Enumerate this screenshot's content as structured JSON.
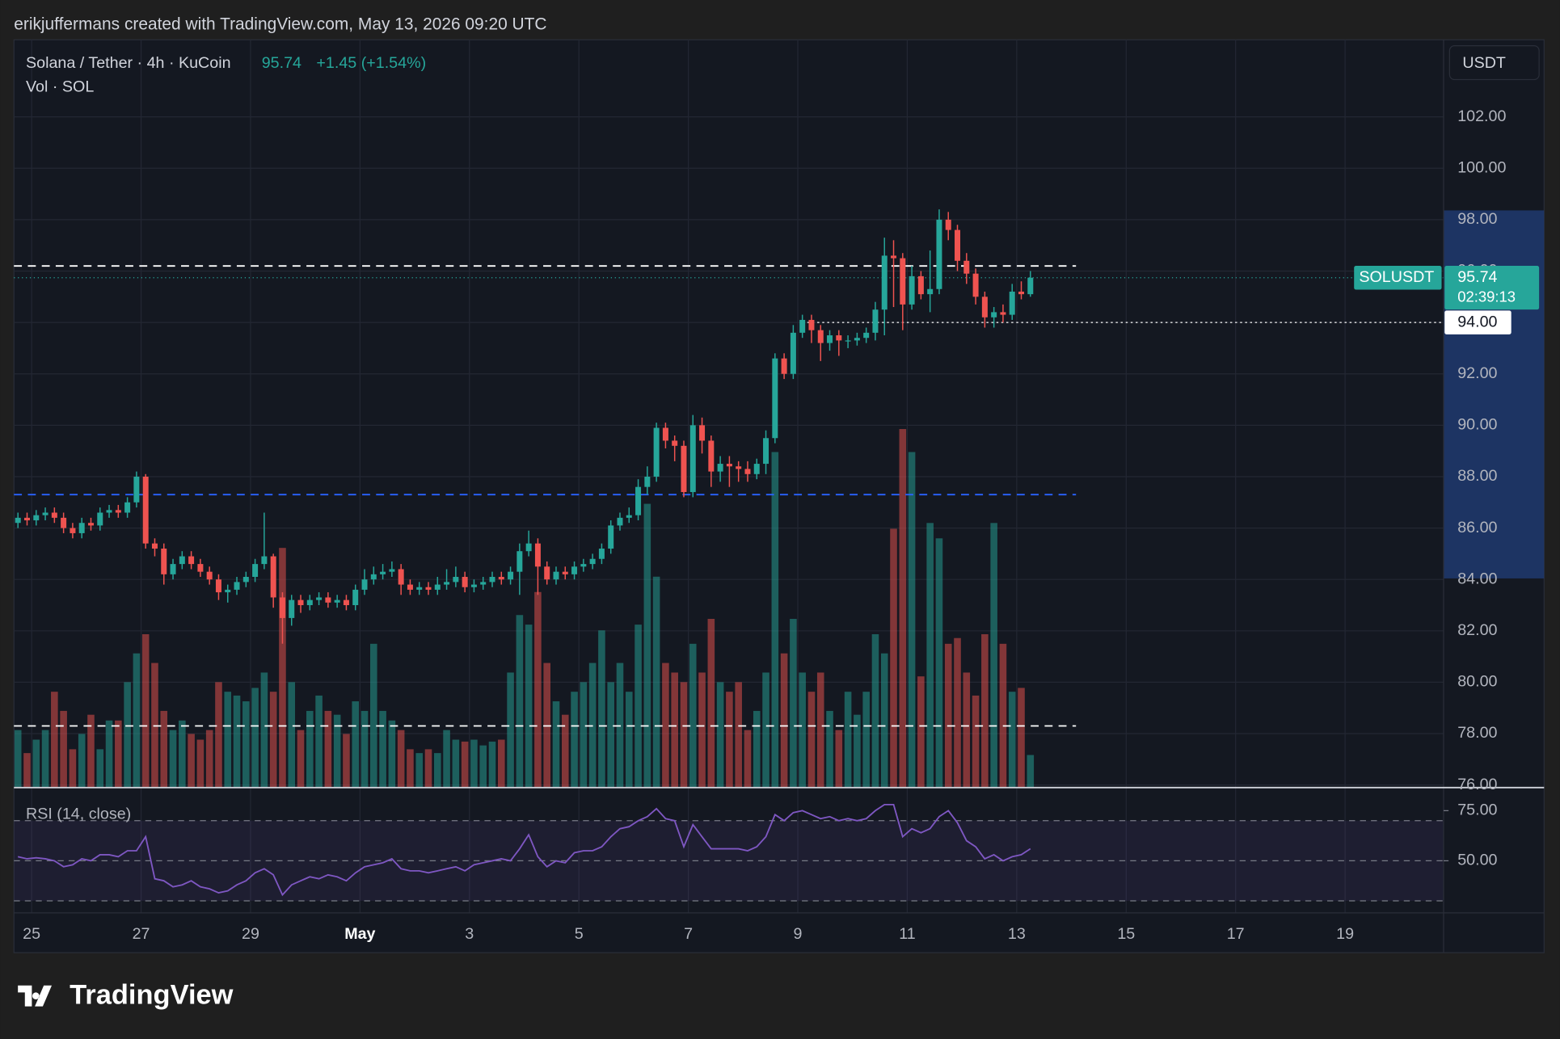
{
  "header": {
    "text": "erikjuffermans created with TradingView.com, May 13, 2026 09:20 UTC"
  },
  "chart_data": {
    "type": "candlestick",
    "title": "Solana / Tether · 4h · KuCoin",
    "last_price": 95.74,
    "change": "+1.45 (+1.54%)",
    "symbol_label": "SOLUSDT",
    "countdown": "02:39:13",
    "currency": "USDT",
    "up_color": "#26a69a",
    "down_color": "#ef5350",
    "open": [
      86.2,
      86.4,
      86.3,
      86.5,
      86.6,
      86.4,
      86.0,
      85.8,
      86.2,
      86.1,
      86.6,
      86.7,
      86.6,
      87.0,
      88.0,
      85.4,
      85.2,
      84.2,
      84.6,
      84.9,
      84.6,
      84.3,
      84.0,
      83.5,
      83.6,
      83.9,
      84.1,
      84.6,
      84.9,
      83.3,
      82.5,
      83.2,
      83.0,
      83.2,
      83.3,
      83.1,
      83.2,
      83.0,
      83.6,
      84.0,
      84.2,
      84.3,
      84.4,
      83.8,
      83.6,
      83.7,
      83.6,
      83.8,
      83.9,
      84.1,
      83.7,
      83.8,
      83.9,
      84.1,
      84.0,
      84.3,
      85.1,
      85.4,
      84.5,
      84.0,
      84.3,
      84.2,
      84.5,
      84.6,
      84.8,
      85.2,
      86.1,
      86.4,
      86.5,
      87.6,
      88.0,
      89.9,
      89.4,
      89.2,
      87.4,
      90.0,
      89.4,
      88.2,
      88.5,
      88.4,
      88.3,
      88.1,
      88.5,
      89.5,
      92.6,
      92.0,
      93.6,
      94.1,
      93.7,
      93.2,
      93.5,
      93.3,
      93.3,
      93.4,
      93.6,
      94.5,
      96.6,
      96.5,
      94.7,
      95.8,
      95.1,
      95.3,
      98.0,
      97.6,
      96.4,
      95.9,
      95.0,
      94.2,
      94.4,
      94.3,
      95.2,
      95.1
    ],
    "high": [
      86.6,
      86.6,
      86.7,
      86.8,
      86.8,
      86.6,
      86.2,
      86.4,
      86.4,
      86.8,
      86.9,
      86.9,
      87.2,
      88.2,
      88.1,
      85.6,
      85.4,
      84.8,
      85.1,
      85.1,
      84.8,
      84.5,
      84.2,
      83.8,
      84.1,
      84.3,
      84.8,
      86.6,
      85.0,
      83.5,
      83.4,
      83.4,
      83.4,
      83.5,
      83.5,
      83.4,
      83.4,
      83.8,
      84.4,
      84.5,
      84.6,
      84.7,
      84.6,
      84.0,
      83.9,
      83.9,
      84.1,
      84.4,
      84.5,
      84.3,
      84.0,
      84.1,
      84.3,
      84.3,
      84.5,
      85.4,
      85.9,
      85.6,
      84.7,
      84.5,
      84.5,
      84.7,
      84.8,
      85.0,
      85.4,
      86.3,
      86.6,
      86.8,
      87.9,
      88.4,
      90.1,
      90.1,
      89.6,
      89.4,
      90.4,
      90.3,
      89.6,
      88.8,
      88.8,
      88.6,
      88.6,
      88.7,
      89.8,
      92.8,
      92.8,
      93.9,
      94.3,
      94.3,
      93.9,
      93.7,
      93.7,
      93.5,
      93.6,
      93.8,
      94.8,
      97.3,
      97.2,
      96.7,
      96.2,
      96.0,
      96.8,
      98.4,
      98.3,
      97.8,
      96.7,
      96.1,
      95.2,
      94.6,
      94.7,
      95.5,
      95.6,
      96.0
    ],
    "low": [
      86.0,
      86.1,
      86.1,
      86.3,
      86.2,
      85.8,
      85.6,
      85.6,
      85.9,
      85.9,
      86.4,
      86.4,
      86.4,
      86.8,
      85.2,
      84.9,
      83.8,
      84.0,
      84.4,
      84.4,
      84.1,
      83.8,
      83.2,
      83.1,
      83.4,
      83.7,
      83.9,
      84.4,
      82.9,
      81.5,
      82.2,
      82.7,
      82.8,
      83.0,
      82.9,
      82.9,
      82.8,
      82.8,
      83.4,
      83.8,
      84.0,
      84.1,
      83.4,
      83.4,
      83.4,
      83.4,
      83.4,
      83.6,
      83.7,
      83.5,
      83.5,
      83.6,
      83.7,
      83.8,
      83.8,
      83.4,
      84.9,
      83.4,
      83.8,
      83.8,
      84.0,
      84.0,
      84.3,
      84.4,
      84.6,
      85.0,
      85.9,
      86.2,
      86.3,
      87.3,
      87.8,
      89.1,
      88.6,
      87.2,
      87.2,
      88.9,
      87.6,
      87.8,
      87.6,
      87.8,
      87.8,
      87.9,
      88.1,
      89.3,
      91.8,
      91.8,
      93.4,
      93.2,
      92.5,
      92.9,
      92.7,
      93.0,
      93.1,
      93.2,
      93.3,
      93.5,
      94.6,
      93.7,
      94.5,
      94.9,
      94.4,
      95.1,
      97.2,
      96.0,
      95.5,
      94.7,
      93.8,
      93.8,
      94.0,
      94.1,
      94.9,
      95.0
    ],
    "close": [
      86.4,
      86.3,
      86.5,
      86.6,
      86.4,
      86.0,
      85.8,
      86.2,
      86.1,
      86.6,
      86.7,
      86.6,
      87.0,
      88.0,
      85.4,
      85.2,
      84.2,
      84.6,
      84.9,
      84.6,
      84.3,
      84.0,
      83.5,
      83.6,
      83.9,
      84.1,
      84.6,
      84.9,
      83.3,
      82.5,
      83.2,
      83.0,
      83.2,
      83.3,
      83.1,
      83.2,
      83.0,
      83.6,
      84.0,
      84.2,
      84.3,
      84.4,
      83.8,
      83.6,
      83.7,
      83.6,
      83.8,
      83.9,
      84.1,
      83.7,
      83.8,
      83.9,
      84.1,
      84.0,
      84.3,
      85.1,
      85.4,
      84.5,
      84.0,
      84.3,
      84.2,
      84.5,
      84.6,
      84.8,
      85.2,
      86.1,
      86.4,
      86.5,
      87.6,
      88.0,
      89.9,
      89.4,
      89.2,
      87.4,
      90.0,
      89.4,
      88.2,
      88.5,
      88.4,
      88.3,
      88.1,
      88.5,
      89.5,
      92.6,
      92.0,
      93.6,
      94.1,
      93.7,
      93.2,
      93.5,
      93.3,
      93.3,
      93.4,
      93.6,
      94.5,
      96.6,
      96.5,
      94.7,
      95.8,
      95.1,
      95.3,
      98.0,
      97.6,
      96.4,
      95.9,
      95.0,
      94.2,
      94.4,
      94.3,
      95.2,
      95.1,
      95.74
    ],
    "xlim": [
      -0.44,
      156.3
    ],
    "xticks": [
      {
        "value": 1.5,
        "label": "25"
      },
      {
        "value": 13.5,
        "label": "27"
      },
      {
        "value": 25.5,
        "label": "29"
      },
      {
        "value": 37.5,
        "label": "May"
      },
      {
        "value": 49.5,
        "label": "3"
      },
      {
        "value": 61.5,
        "label": "5"
      },
      {
        "value": 73.5,
        "label": "7"
      },
      {
        "value": 85.5,
        "label": "9"
      },
      {
        "value": 97.5,
        "label": "11"
      },
      {
        "value": 109.5,
        "label": "13"
      },
      {
        "value": 121.5,
        "label": "15"
      },
      {
        "value": 133.5,
        "label": "17"
      },
      {
        "value": 145.5,
        "label": "19"
      }
    ],
    "ylim": [
      75.9,
      105.0
    ],
    "yticks": [
      {
        "value": 76,
        "label": "76.00"
      },
      {
        "value": 78,
        "label": "78.00"
      },
      {
        "value": 80,
        "label": "80.00"
      },
      {
        "value": 82,
        "label": "82.00"
      },
      {
        "value": 84,
        "label": "84.00"
      },
      {
        "value": 86,
        "label": "86.00"
      },
      {
        "value": 88,
        "label": "88.00"
      },
      {
        "value": 90,
        "label": "90.00"
      },
      {
        "value": 92,
        "label": "92.00"
      },
      {
        "value": 94,
        "label": "94.00"
      },
      {
        "value": 96,
        "label": "96.00"
      },
      {
        "value": 98,
        "label": "98.00"
      },
      {
        "value": 100,
        "label": "100.00"
      },
      {
        "value": 102,
        "label": "102.00"
      }
    ],
    "grid": true,
    "levels": [
      {
        "value": 96.2,
        "color": "#ffffff",
        "end": 116
      },
      {
        "value": 87.3,
        "color": "#2962ff",
        "end": 116
      },
      {
        "value": 78.3,
        "color": "#ffffff",
        "end": 116
      }
    ],
    "price_line": {
      "value": 94.0,
      "label": "94.00"
    },
    "axis_highlight": [
      84.04,
      98.36
    ],
    "volume": {
      "title": "Vol · SOL",
      "ylim": [
        0,
        390
      ],
      "values": [
        30,
        18,
        25,
        30,
        50,
        40,
        20,
        28,
        38,
        20,
        35,
        35,
        55,
        70,
        80,
        65,
        40,
        30,
        35,
        28,
        25,
        30,
        55,
        50,
        48,
        45,
        52,
        60,
        50,
        125,
        55,
        30,
        40,
        48,
        40,
        38,
        28,
        45,
        40,
        75,
        40,
        35,
        30,
        20,
        18,
        20,
        18,
        30,
        25,
        24,
        25,
        22,
        24,
        25,
        60,
        90,
        85,
        102,
        65,
        45,
        38,
        50,
        55,
        65,
        82,
        55,
        65,
        50,
        85,
        148,
        110,
        65,
        60,
        55,
        75,
        60,
        88,
        55,
        50,
        55,
        30,
        40,
        60,
        175,
        70,
        88,
        60,
        50,
        60,
        40,
        30,
        50,
        38,
        50,
        80,
        70,
        135,
        187,
        175,
        58,
        138,
        130,
        75,
        78,
        60,
        48,
        80,
        138,
        75,
        50,
        52,
        17
      ]
    },
    "rsi": {
      "title": "RSI (14, close)",
      "color": "#7e57c2",
      "ylim": [
        24,
        86
      ],
      "yticks": [
        {
          "value": 75,
          "label": "75.00"
        },
        {
          "value": 50,
          "label": "50.00"
        }
      ],
      "levels": [
        30,
        50,
        70
      ],
      "values": [
        52,
        51,
        51.5,
        51,
        50,
        47,
        48,
        51,
        50,
        53,
        53,
        52,
        55,
        55,
        62,
        41,
        40,
        37,
        38,
        40,
        37,
        36,
        34,
        35,
        38,
        40,
        44,
        46,
        43,
        33,
        38,
        40,
        42,
        41,
        43,
        42,
        40,
        44,
        47,
        48,
        49,
        51,
        46,
        45,
        45,
        44,
        45,
        46,
        47,
        45,
        48,
        49,
        50,
        51,
        50,
        56,
        63,
        52,
        47,
        50,
        49,
        54,
        55,
        55,
        57,
        62,
        66,
        67,
        70,
        72,
        76,
        71,
        70,
        57,
        68,
        62,
        56,
        56,
        56,
        56,
        55,
        57,
        62,
        73,
        70,
        74,
        75,
        73,
        71,
        72,
        70,
        71,
        70,
        71,
        75,
        78,
        78,
        62,
        66,
        64,
        66,
        72,
        75,
        69,
        60,
        57,
        51,
        53,
        50,
        52,
        53,
        56
      ]
    }
  },
  "footer": {
    "logo": "TradingView"
  }
}
